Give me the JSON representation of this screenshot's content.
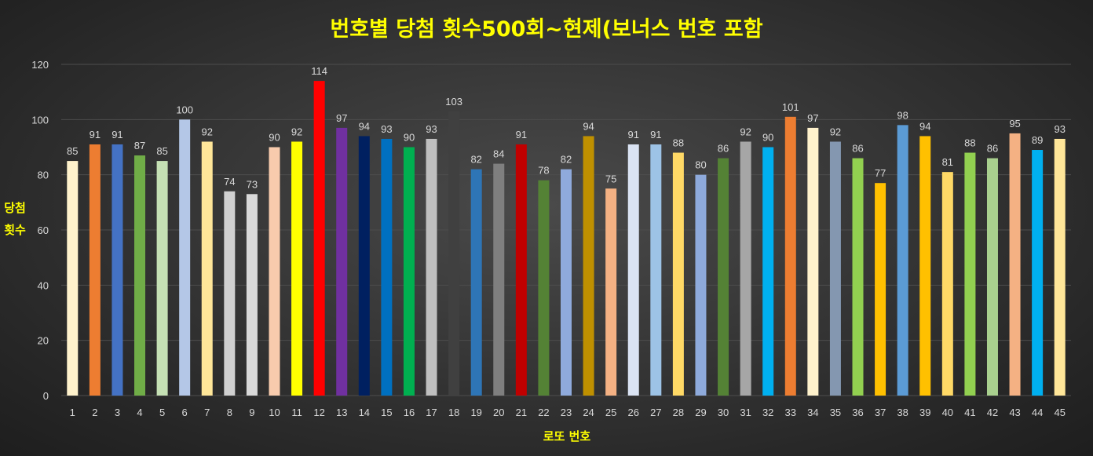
{
  "chart_data": {
    "type": "bar",
    "title": "번호별 당첨 횟수500회~현제(보너스 번호 포함",
    "xlabel": "로또 번호",
    "ylabel": "당첨 횟수",
    "ylim": [
      0,
      120
    ],
    "yticks": [
      0,
      20,
      40,
      60,
      80,
      100,
      120
    ],
    "grid": true,
    "categories": [
      "1",
      "2",
      "3",
      "4",
      "5",
      "6",
      "7",
      "8",
      "9",
      "10",
      "11",
      "12",
      "13",
      "14",
      "15",
      "16",
      "17",
      "18",
      "19",
      "20",
      "21",
      "22",
      "23",
      "24",
      "25",
      "26",
      "27",
      "28",
      "29",
      "30",
      "31",
      "32",
      "33",
      "34",
      "35",
      "36",
      "37",
      "38",
      "39",
      "40",
      "41",
      "42",
      "43",
      "44",
      "45"
    ],
    "values": [
      85,
      91,
      91,
      87,
      85,
      100,
      92,
      74,
      73,
      90,
      92,
      114,
      97,
      94,
      93,
      90,
      93,
      103,
      82,
      84,
      91,
      78,
      82,
      94,
      75,
      91,
      91,
      88,
      80,
      86,
      92,
      90,
      101,
      97,
      92,
      86,
      77,
      98,
      94,
      81,
      88,
      86,
      95,
      89,
      93
    ],
    "colors": [
      "#fff2cc",
      "#ed7d31",
      "#4472c4",
      "#70ad47",
      "#c5e0b4",
      "#b4c7e7",
      "#ffe699",
      "#d0d0d0",
      "#d9d9d9",
      "#f8cbad",
      "#ffff00",
      "#ff0000",
      "#7030a0",
      "#002060",
      "#0070c0",
      "#00b050",
      "#bfbfbf",
      "#404040",
      "#2e75b6",
      "#7f7f7f",
      "#c00000",
      "#548235",
      "#8faadc",
      "#bf9000",
      "#f4b183",
      "#dae3f3",
      "#9dc3e6",
      "#ffd966",
      "#8eaadb",
      "#548235",
      "#a6a6a6",
      "#00b0f0",
      "#ed7d31",
      "#fff2cc",
      "#8497b0",
      "#92d050",
      "#ffc000",
      "#5b9bd5",
      "#ffc000",
      "#ffd966",
      "#92d050",
      "#a9d08e",
      "#f4b183",
      "#00b0f0",
      "#ffe699"
    ],
    "title_color": "#ffff00",
    "label_color": "#d9d9d9"
  }
}
